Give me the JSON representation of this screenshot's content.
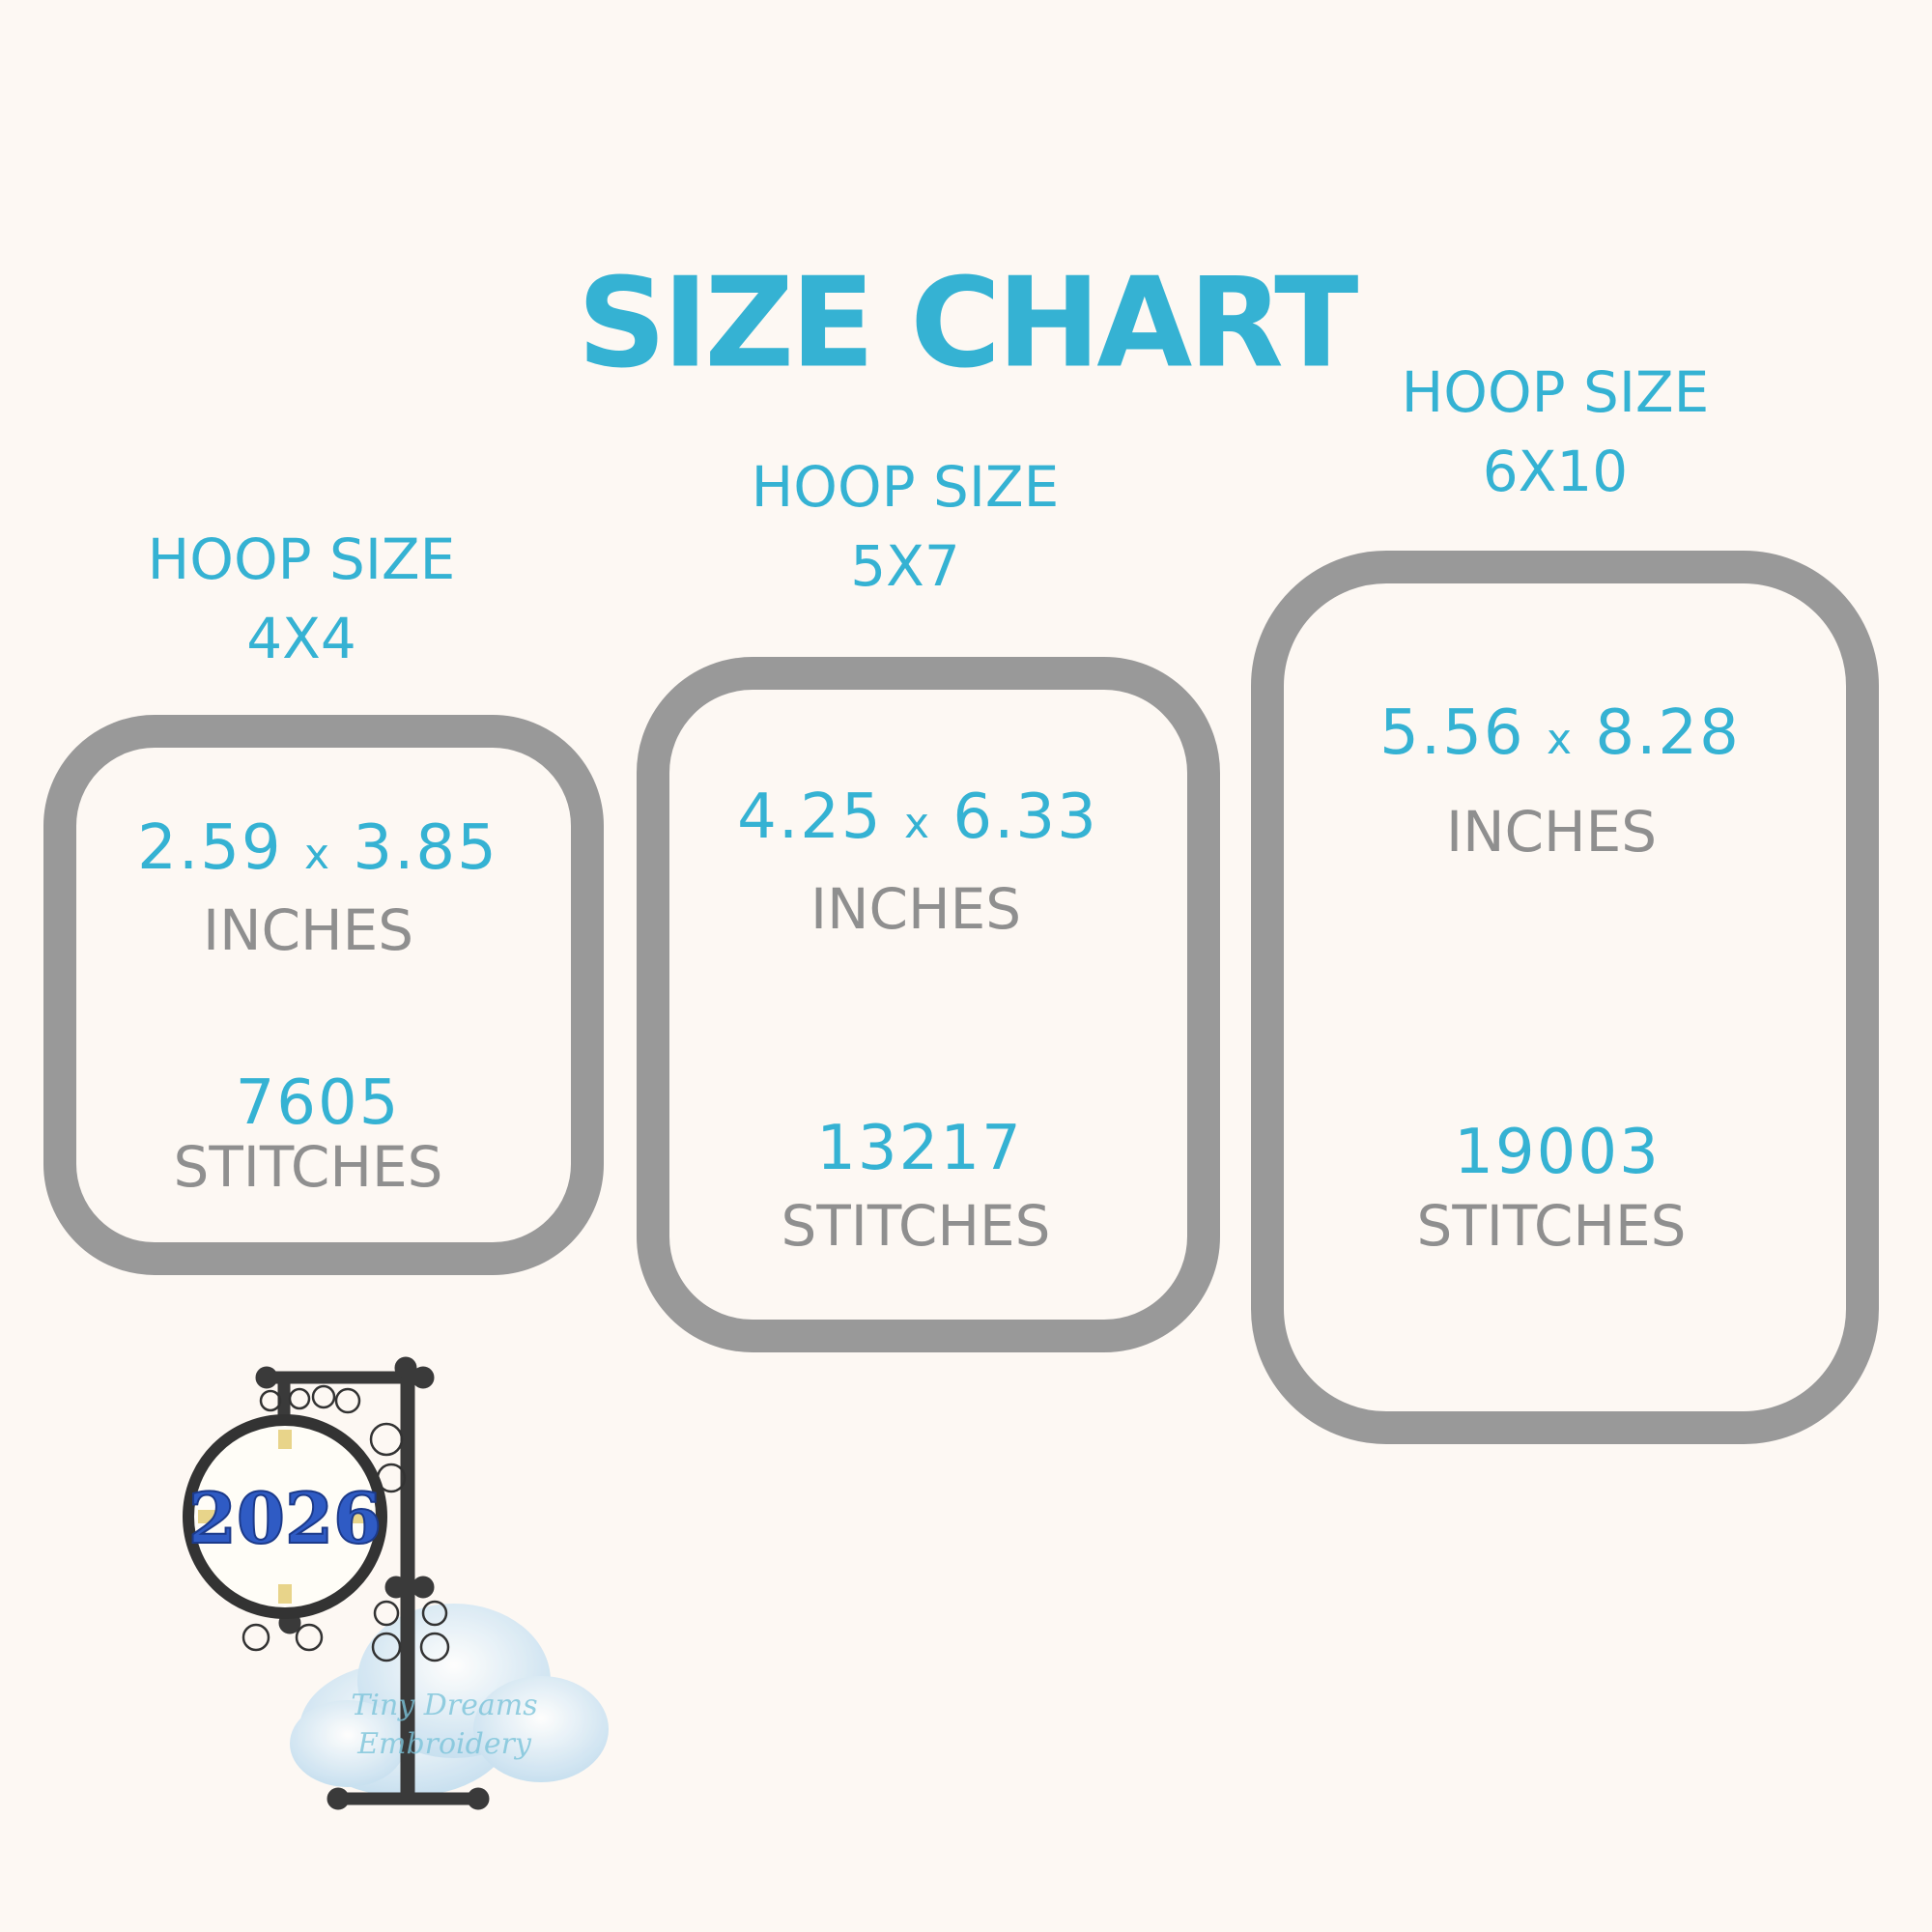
{
  "title": "SIZE CHART",
  "colors": {
    "accent": "#35b2d3",
    "text_gray": "#8f8f8f",
    "hoop_border": "#999999",
    "background": "#fdf8f3"
  },
  "hoops": [
    {
      "label": "HOOP SIZE",
      "size": "4X4",
      "width": "2.59",
      "x": "x",
      "height": "3.85",
      "unit": "INCHES",
      "stitches": "7605",
      "stitches_label": "STITCHES"
    },
    {
      "label": "HOOP SIZE",
      "size": "5X7",
      "width": "4.25",
      "x": "x",
      "height": "6.33",
      "unit": "INCHES",
      "stitches": "13217",
      "stitches_label": "STITCHES"
    },
    {
      "label": "HOOP SIZE",
      "size": "6X10",
      "width": "5.56",
      "x": "x",
      "height": "8.28",
      "unit": "INCHES",
      "stitches": "19003",
      "stitches_label": "STITCHES"
    }
  ],
  "illustration": {
    "clock_text": "2026",
    "watermark": "Tiny Dreams Embroidery"
  }
}
